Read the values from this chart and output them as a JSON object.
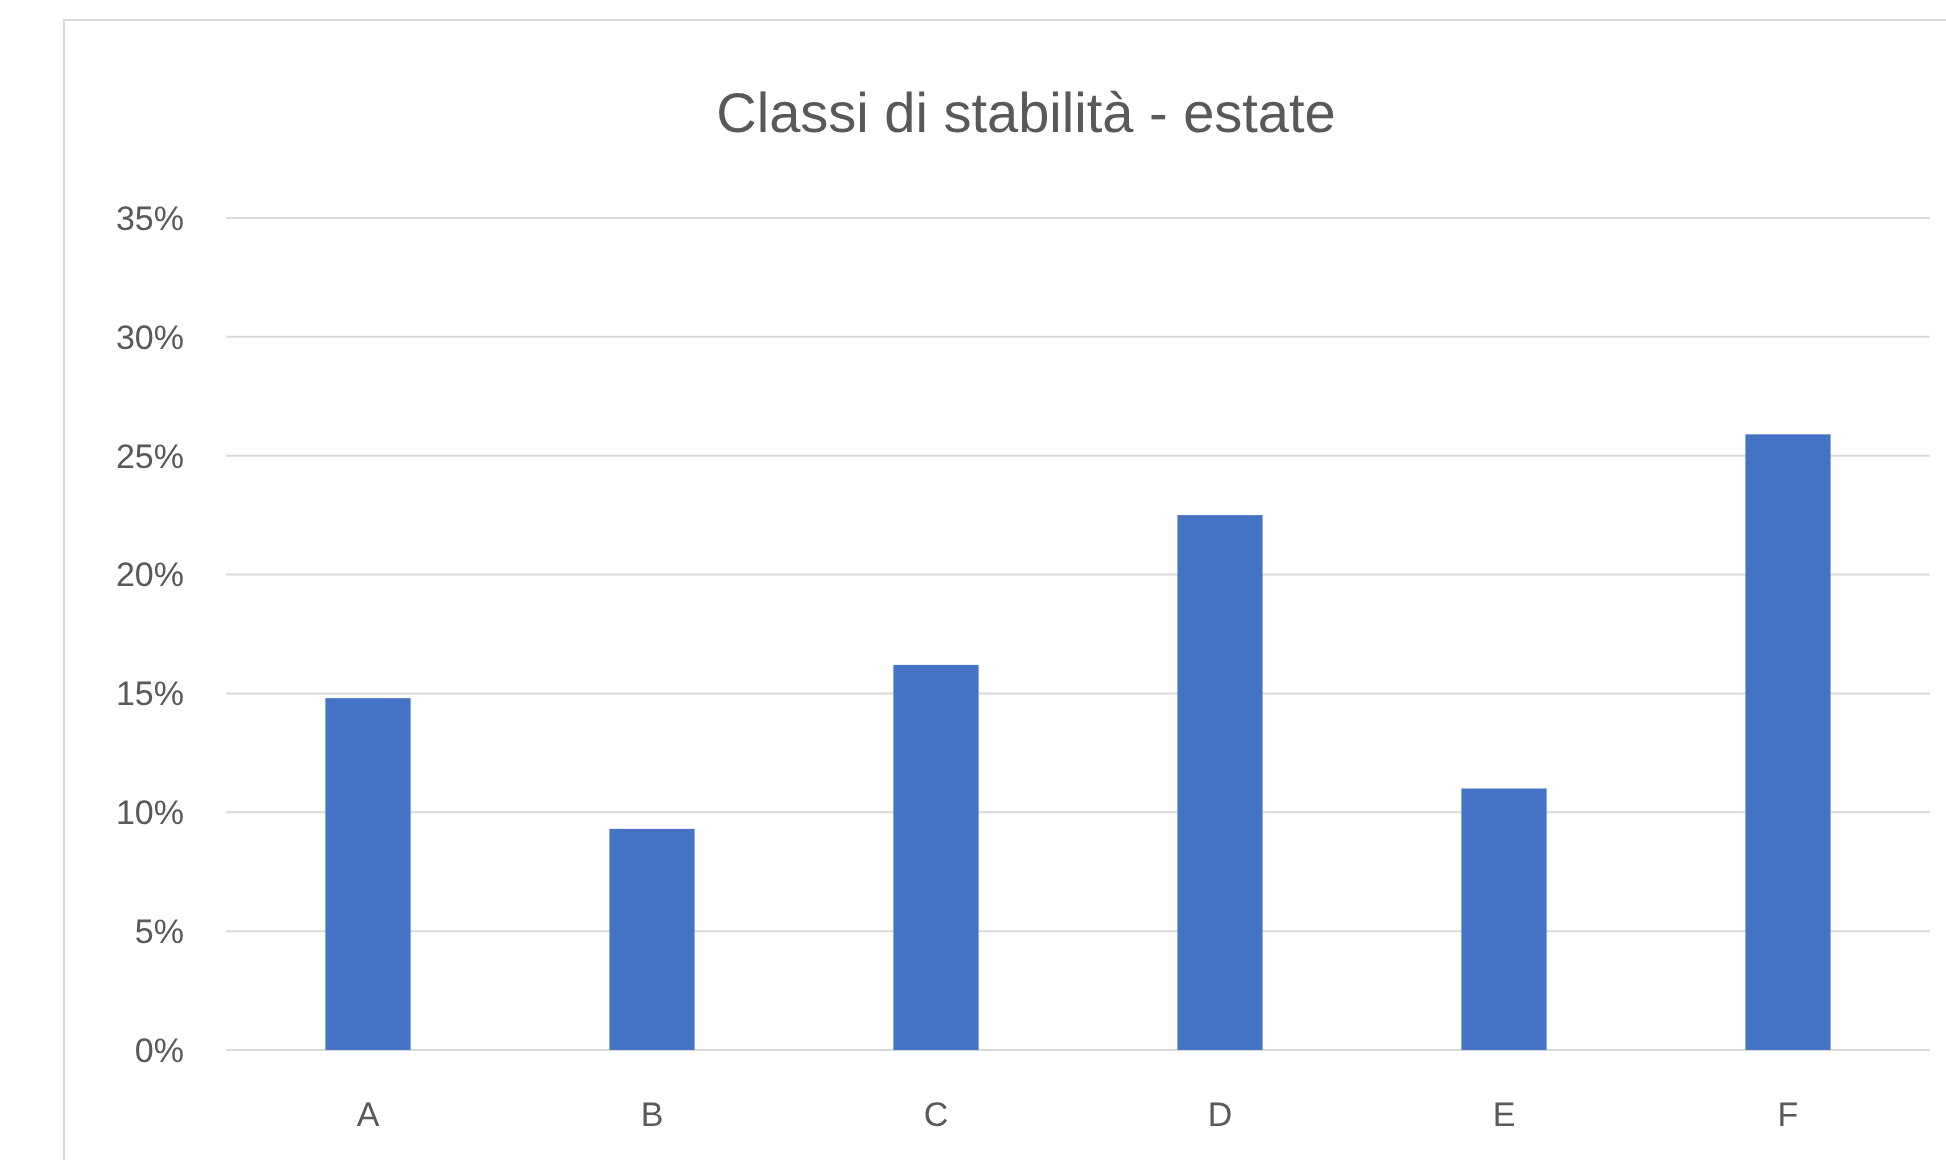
{
  "chart_data": {
    "type": "bar",
    "title": "Classi di stabilità - estate",
    "categories": [
      "A",
      "B",
      "C",
      "D",
      "E",
      "F"
    ],
    "values": [
      14.8,
      9.3,
      16.2,
      22.5,
      11.0,
      25.9
    ],
    "color": "#4472c4",
    "ylim": [
      0,
      35
    ],
    "yticks": [
      {
        "value": 0,
        "label": "0%"
      },
      {
        "value": 5,
        "label": "5%"
      },
      {
        "value": 10,
        "label": "10%"
      },
      {
        "value": 15,
        "label": "15%"
      },
      {
        "value": 20,
        "label": "20%"
      },
      {
        "value": 25,
        "label": "25%"
      },
      {
        "value": 30,
        "label": "30%"
      },
      {
        "value": 35,
        "label": "35%"
      }
    ],
    "grid": "y"
  }
}
